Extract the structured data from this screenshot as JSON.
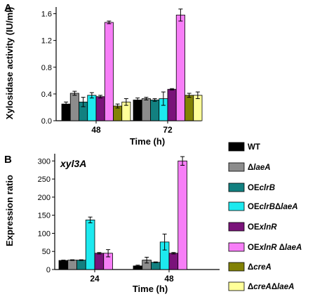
{
  "figure": {
    "panel_a_letter": "A",
    "panel_b_letter": "B"
  },
  "series_colors": {
    "WT": "#000000",
    "ΔlaeA": "#8c8c8c",
    "OEclrB": "#128080",
    "OEclrBΔlaeA": "#1de9ef",
    "OExlnR": "#7a137a",
    "OExlnR ΔlaeA": "#f77ef7",
    "ΔcreA": "#828205",
    "ΔcreAΔlaeA": "#ffff99"
  },
  "legend": {
    "entries": [
      {
        "series": "WT",
        "prefix": "",
        "italic": "",
        "suffix": "WT"
      },
      {
        "series": "ΔlaeA",
        "prefix": "Δ",
        "italic": "laeA",
        "suffix": ""
      },
      {
        "series": "OEclrB",
        "prefix": "OE",
        "italic": "clrB",
        "suffix": ""
      },
      {
        "series": "OEclrBΔlaeA",
        "prefix": "OE",
        "italic": "clrB",
        "suffix": "ΔlaeA"
      },
      {
        "series": "OExlnR",
        "prefix": "OE",
        "italic": "xlnR",
        "suffix": ""
      },
      {
        "series": "OExlnR ΔlaeA",
        "prefix": "OE",
        "italic": "xlnR",
        "suffix": " ΔlaeA"
      },
      {
        "series": "ΔcreA",
        "prefix": "Δ",
        "italic": "creA",
        "suffix": ""
      },
      {
        "series": "ΔcreAΔlaeA",
        "prefix": "Δ",
        "italic": "creA",
        "suffix": "ΔlaeA"
      }
    ]
  },
  "chart_data": [
    {
      "type": "bar",
      "panel": "A",
      "xlabel": "Time (h)",
      "ylabel": "Xylosidase activity (IU/ml)",
      "categories": [
        "48",
        "72"
      ],
      "ylim": [
        0,
        1.7
      ],
      "yticks": [
        "0.0",
        "0.4",
        "0.8",
        "1.2",
        "1.6"
      ],
      "series": [
        {
          "name": "WT",
          "values": [
            0.25,
            0.31
          ],
          "errors": [
            0.03,
            0.03
          ]
        },
        {
          "name": "ΔlaeA",
          "values": [
            0.41,
            0.33
          ],
          "errors": [
            0.03,
            0.02
          ]
        },
        {
          "name": "OEclrB",
          "values": [
            0.28,
            0.31
          ],
          "errors": [
            0.07,
            0.02
          ]
        },
        {
          "name": "OEclrBΔlaeA",
          "values": [
            0.38,
            0.33
          ],
          "errors": [
            0.04,
            0.1
          ]
        },
        {
          "name": "OExlnR",
          "values": [
            0.36,
            0.47
          ],
          "errors": [
            0.02,
            0.01
          ]
        },
        {
          "name": "OExlnR ΔlaeA",
          "values": [
            1.47,
            1.58
          ],
          "errors": [
            0.02,
            0.09
          ]
        },
        {
          "name": "ΔcreA",
          "values": [
            0.22,
            0.38
          ],
          "errors": [
            0.03,
            0.03
          ]
        },
        {
          "name": "ΔcreAΔlaeA",
          "values": [
            0.28,
            0.38
          ],
          "errors": [
            0.05,
            0.05
          ]
        }
      ]
    },
    {
      "type": "bar",
      "panel": "B",
      "annotation": "xyl3A",
      "xlabel": "Time (h)",
      "ylabel": "Expression ratio",
      "categories": [
        "24",
        "48"
      ],
      "ylim": [
        0,
        320
      ],
      "yticks": [
        "0",
        "50",
        "100",
        "150",
        "200",
        "250",
        "300"
      ],
      "series": [
        {
          "name": "WT",
          "values": [
            25,
            10
          ],
          "errors": [
            1,
            2
          ]
        },
        {
          "name": "ΔlaeA",
          "values": [
            26,
            26
          ],
          "errors": [
            1,
            8
          ]
        },
        {
          "name": "OEclrB",
          "values": [
            26,
            20
          ],
          "errors": [
            1,
            1
          ]
        },
        {
          "name": "OEclrBΔlaeA",
          "values": [
            137,
            76
          ],
          "errors": [
            8,
            22
          ]
        },
        {
          "name": "OExlnR",
          "values": [
            45,
            45
          ],
          "errors": [
            2,
            2
          ]
        },
        {
          "name": "OExlnR ΔlaeA",
          "values": [
            45,
            300
          ],
          "errors": [
            10,
            12
          ]
        },
        {
          "name": "ΔcreA",
          "values": [
            null,
            null
          ],
          "errors": [
            null,
            null
          ]
        },
        {
          "name": "ΔcreAΔlaeA",
          "values": [
            null,
            null
          ],
          "errors": [
            null,
            null
          ]
        }
      ]
    }
  ]
}
